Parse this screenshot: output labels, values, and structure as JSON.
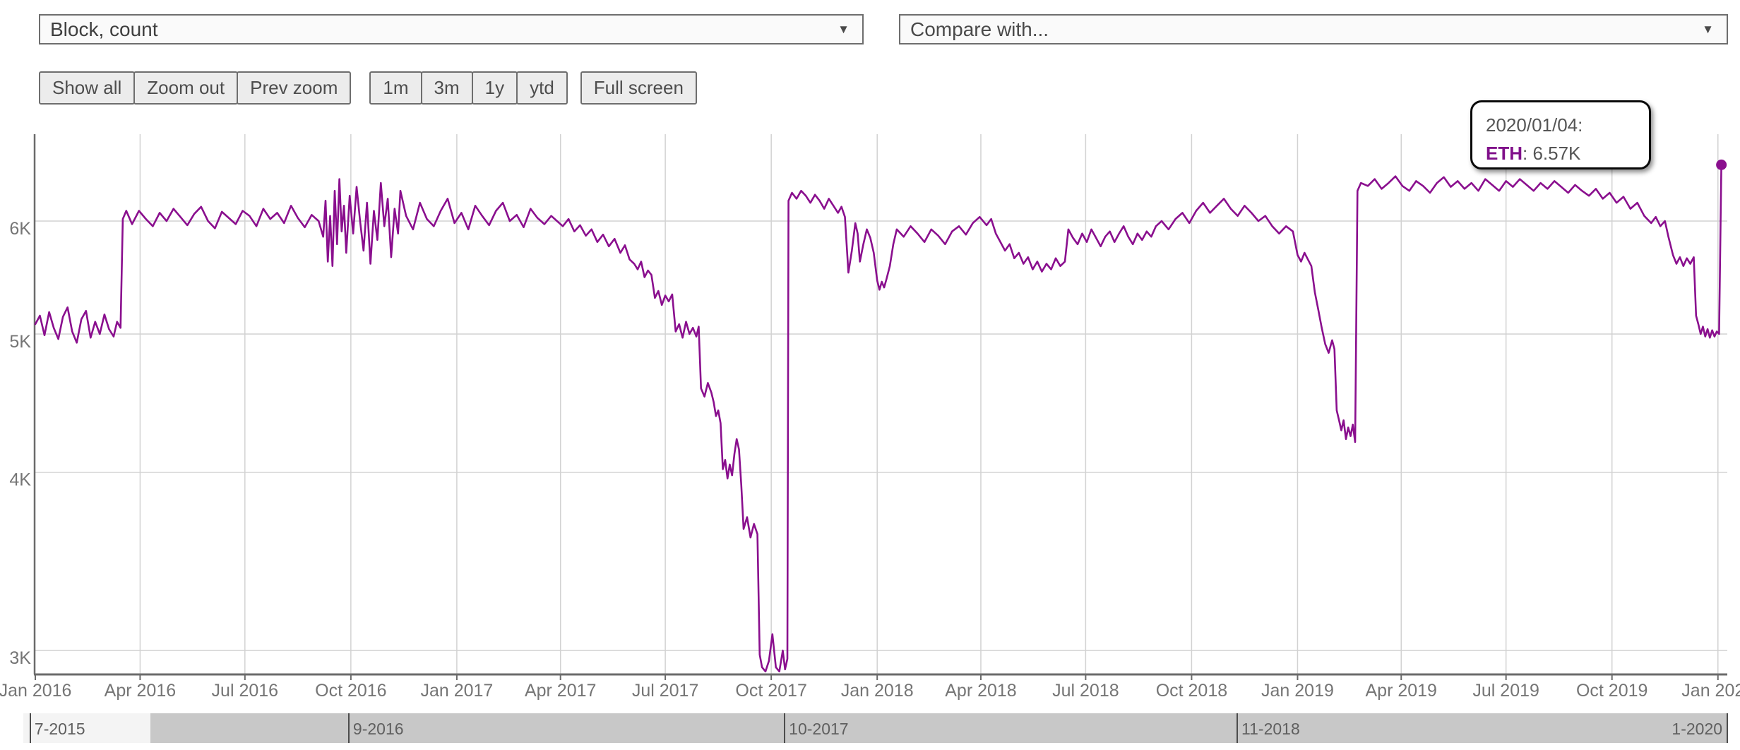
{
  "controls": {
    "metric_dropdown": {
      "value": "Block, count",
      "arrow": "▼"
    },
    "compare_dropdown": {
      "value": "Compare with...",
      "arrow": "▼"
    },
    "buttons": {
      "history_group": [
        "Show all",
        "Zoom out",
        "Prev zoom"
      ],
      "range_group": [
        "1m",
        "3m",
        "1y",
        "ytd"
      ],
      "fullscreen_label": "Full screen"
    }
  },
  "tooltip": {
    "date": "2020/01/04:",
    "series": "ETH",
    "separator": ": ",
    "value": "6.57K"
  },
  "navigator": {
    "selected_start": 0.0746,
    "selected_end": 1.0,
    "ticks": [
      {
        "label": "7-2015",
        "pos": 0.0037,
        "side": "left"
      },
      {
        "label": "9-2016",
        "pos": 0.1906,
        "side": "left"
      },
      {
        "label": "10-2017",
        "pos": 0.4464,
        "side": "left"
      },
      {
        "label": "11-2018",
        "pos": 0.712,
        "side": "left"
      },
      {
        "label": "1-2020",
        "pos": 0.9996,
        "side": "right"
      }
    ]
  },
  "chart_data": {
    "type": "line",
    "title": "",
    "series_name": "ETH",
    "metric": "Block, count",
    "line_color": "#8a0f8e",
    "grid_color": "#d2d2d2",
    "axis_color": "#6b6b6b",
    "label_color": "#757575",
    "grid": true,
    "legend_position": "none",
    "y_axis": {
      "scale": "log",
      "unit": "K blocks per day",
      "ticks": [
        {
          "label": "6K",
          "value": 6
        },
        {
          "label": "5K",
          "value": 5
        },
        {
          "label": "4K",
          "value": 4
        },
        {
          "label": "3K",
          "value": 3
        }
      ],
      "visible_range_k": [
        2.88,
        6.95
      ]
    },
    "x_axis": {
      "unit": "days since 2016-01-01",
      "range_days": [
        0,
        1470
      ],
      "ticks": [
        {
          "label": "Jan 2016",
          "day": 0
        },
        {
          "label": "Apr 2016",
          "day": 91
        },
        {
          "label": "Jul 2016",
          "day": 182
        },
        {
          "label": "Oct 2016",
          "day": 274
        },
        {
          "label": "Jan 2017",
          "day": 366
        },
        {
          "label": "Apr 2017",
          "day": 456
        },
        {
          "label": "Jul 2017",
          "day": 547
        },
        {
          "label": "Oct 2017",
          "day": 639
        },
        {
          "label": "Jan 2018",
          "day": 731
        },
        {
          "label": "Apr 2018",
          "day": 821
        },
        {
          "label": "Jul 2018",
          "day": 912
        },
        {
          "label": "Oct 2018",
          "day": 1004
        },
        {
          "label": "Jan 2019",
          "day": 1096
        },
        {
          "label": "Apr 2019",
          "day": 1186
        },
        {
          "label": "Jul 2019",
          "day": 1277
        },
        {
          "label": "Oct 2019",
          "day": 1369
        },
        {
          "label": "Jan 2020",
          "day": 1461
        }
      ]
    },
    "last_point": {
      "date": "2020/01/04",
      "day": 1464,
      "value_k": 6.57
    },
    "points": [
      [
        0,
        5.08
      ],
      [
        4,
        5.15
      ],
      [
        8,
        4.99
      ],
      [
        12,
        5.18
      ],
      [
        16,
        5.05
      ],
      [
        20,
        4.96
      ],
      [
        24,
        5.14
      ],
      [
        28,
        5.22
      ],
      [
        32,
        5.02
      ],
      [
        36,
        4.93
      ],
      [
        40,
        5.12
      ],
      [
        44,
        5.19
      ],
      [
        48,
        4.97
      ],
      [
        52,
        5.1
      ],
      [
        56,
        5.0
      ],
      [
        60,
        5.16
      ],
      [
        64,
        5.04
      ],
      [
        68,
        4.98
      ],
      [
        71,
        5.1
      ],
      [
        74,
        5.05
      ],
      [
        76,
        6.02
      ],
      [
        79,
        6.1
      ],
      [
        84,
        5.97
      ],
      [
        90,
        6.1
      ],
      [
        96,
        6.02
      ],
      [
        102,
        5.95
      ],
      [
        108,
        6.08
      ],
      [
        114,
        6.0
      ],
      [
        120,
        6.12
      ],
      [
        126,
        6.04
      ],
      [
        132,
        5.96
      ],
      [
        138,
        6.07
      ],
      [
        144,
        6.14
      ],
      [
        150,
        6.0
      ],
      [
        156,
        5.93
      ],
      [
        162,
        6.09
      ],
      [
        168,
        6.03
      ],
      [
        174,
        5.97
      ],
      [
        180,
        6.1
      ],
      [
        186,
        6.05
      ],
      [
        192,
        5.95
      ],
      [
        198,
        6.12
      ],
      [
        204,
        6.02
      ],
      [
        210,
        6.08
      ],
      [
        216,
        5.98
      ],
      [
        222,
        6.15
      ],
      [
        228,
        6.03
      ],
      [
        234,
        5.94
      ],
      [
        240,
        6.06
      ],
      [
        246,
        6.0
      ],
      [
        250,
        5.85
      ],
      [
        252,
        6.2
      ],
      [
        254,
        5.62
      ],
      [
        256,
        6.05
      ],
      [
        258,
        5.58
      ],
      [
        260,
        6.3
      ],
      [
        262,
        5.78
      ],
      [
        264,
        6.42
      ],
      [
        266,
        5.9
      ],
      [
        268,
        6.15
      ],
      [
        270,
        5.7
      ],
      [
        273,
        6.25
      ],
      [
        276,
        5.88
      ],
      [
        279,
        6.34
      ],
      [
        282,
        6.0
      ],
      [
        285,
        5.72
      ],
      [
        288,
        6.18
      ],
      [
        291,
        5.6
      ],
      [
        294,
        6.1
      ],
      [
        297,
        5.82
      ],
      [
        300,
        6.38
      ],
      [
        303,
        5.95
      ],
      [
        306,
        6.22
      ],
      [
        309,
        5.66
      ],
      [
        312,
        6.12
      ],
      [
        315,
        5.88
      ],
      [
        317,
        6.3
      ],
      [
        322,
        6.05
      ],
      [
        328,
        5.92
      ],
      [
        334,
        6.18
      ],
      [
        340,
        6.02
      ],
      [
        346,
        5.95
      ],
      [
        352,
        6.1
      ],
      [
        358,
        6.22
      ],
      [
        364,
        5.98
      ],
      [
        370,
        6.08
      ],
      [
        376,
        5.92
      ],
      [
        382,
        6.15
      ],
      [
        388,
        6.05
      ],
      [
        394,
        5.96
      ],
      [
        400,
        6.1
      ],
      [
        406,
        6.18
      ],
      [
        412,
        6.0
      ],
      [
        418,
        6.06
      ],
      [
        424,
        5.94
      ],
      [
        430,
        6.12
      ],
      [
        436,
        6.03
      ],
      [
        442,
        5.97
      ],
      [
        448,
        6.05
      ],
      [
        453,
        6.0
      ],
      [
        458,
        5.95
      ],
      [
        463,
        6.02
      ],
      [
        468,
        5.9
      ],
      [
        473,
        5.96
      ],
      [
        478,
        5.86
      ],
      [
        483,
        5.92
      ],
      [
        488,
        5.8
      ],
      [
        493,
        5.87
      ],
      [
        498,
        5.76
      ],
      [
        503,
        5.83
      ],
      [
        508,
        5.7
      ],
      [
        512,
        5.77
      ],
      [
        516,
        5.64
      ],
      [
        520,
        5.6
      ],
      [
        523,
        5.55
      ],
      [
        526,
        5.62
      ],
      [
        529,
        5.48
      ],
      [
        532,
        5.54
      ],
      [
        535,
        5.5
      ],
      [
        538,
        5.3
      ],
      [
        541,
        5.36
      ],
      [
        544,
        5.24
      ],
      [
        547,
        5.32
      ],
      [
        550,
        5.27
      ],
      [
        553,
        5.33
      ],
      [
        556,
        5.02
      ],
      [
        559,
        5.08
      ],
      [
        562,
        4.97
      ],
      [
        565,
        5.1
      ],
      [
        568,
        5.0
      ],
      [
        571,
        5.05
      ],
      [
        574,
        4.98
      ],
      [
        576,
        5.06
      ],
      [
        578,
        4.58
      ],
      [
        581,
        4.52
      ],
      [
        584,
        4.62
      ],
      [
        587,
        4.55
      ],
      [
        589,
        4.48
      ],
      [
        591,
        4.38
      ],
      [
        593,
        4.42
      ],
      [
        595,
        4.33
      ],
      [
        597,
        4.02
      ],
      [
        599,
        4.08
      ],
      [
        601,
        3.96
      ],
      [
        603,
        4.05
      ],
      [
        605,
        3.98
      ],
      [
        607,
        4.12
      ],
      [
        609,
        4.22
      ],
      [
        611,
        4.15
      ],
      [
        613,
        3.92
      ],
      [
        615,
        3.65
      ],
      [
        618,
        3.72
      ],
      [
        621,
        3.6
      ],
      [
        624,
        3.68
      ],
      [
        627,
        3.62
      ],
      [
        629,
        2.98
      ],
      [
        631,
        2.92
      ],
      [
        634,
        2.9
      ],
      [
        637,
        2.95
      ],
      [
        640,
        3.08
      ],
      [
        643,
        2.92
      ],
      [
        646,
        2.9
      ],
      [
        649,
        3.0
      ],
      [
        651,
        2.91
      ],
      [
        653,
        2.96
      ],
      [
        654,
        6.2
      ],
      [
        657,
        6.28
      ],
      [
        661,
        6.22
      ],
      [
        665,
        6.3
      ],
      [
        669,
        6.25
      ],
      [
        673,
        6.18
      ],
      [
        677,
        6.26
      ],
      [
        681,
        6.2
      ],
      [
        685,
        6.12
      ],
      [
        689,
        6.22
      ],
      [
        693,
        6.15
      ],
      [
        697,
        6.08
      ],
      [
        700,
        6.14
      ],
      [
        703,
        6.04
      ],
      [
        706,
        5.52
      ],
      [
        709,
        5.72
      ],
      [
        712,
        5.98
      ],
      [
        714,
        5.88
      ],
      [
        716,
        5.62
      ],
      [
        719,
        5.78
      ],
      [
        722,
        5.92
      ],
      [
        725,
        5.84
      ],
      [
        728,
        5.7
      ],
      [
        731,
        5.45
      ],
      [
        733,
        5.37
      ],
      [
        735,
        5.44
      ],
      [
        737,
        5.39
      ],
      [
        739,
        5.46
      ],
      [
        742,
        5.58
      ],
      [
        745,
        5.78
      ],
      [
        748,
        5.92
      ],
      [
        754,
        5.85
      ],
      [
        760,
        5.95
      ],
      [
        766,
        5.88
      ],
      [
        772,
        5.8
      ],
      [
        778,
        5.92
      ],
      [
        784,
        5.86
      ],
      [
        790,
        5.78
      ],
      [
        796,
        5.9
      ],
      [
        802,
        5.95
      ],
      [
        808,
        5.87
      ],
      [
        814,
        5.98
      ],
      [
        820,
        6.04
      ],
      [
        826,
        5.96
      ],
      [
        830,
        6.02
      ],
      [
        834,
        5.88
      ],
      [
        838,
        5.8
      ],
      [
        842,
        5.72
      ],
      [
        846,
        5.78
      ],
      [
        850,
        5.65
      ],
      [
        854,
        5.7
      ],
      [
        858,
        5.6
      ],
      [
        862,
        5.66
      ],
      [
        866,
        5.55
      ],
      [
        870,
        5.62
      ],
      [
        874,
        5.53
      ],
      [
        878,
        5.6
      ],
      [
        882,
        5.55
      ],
      [
        886,
        5.65
      ],
      [
        890,
        5.58
      ],
      [
        894,
        5.62
      ],
      [
        897,
        5.92
      ],
      [
        901,
        5.84
      ],
      [
        905,
        5.78
      ],
      [
        909,
        5.88
      ],
      [
        913,
        5.8
      ],
      [
        917,
        5.92
      ],
      [
        921,
        5.84
      ],
      [
        925,
        5.76
      ],
      [
        929,
        5.85
      ],
      [
        933,
        5.9
      ],
      [
        937,
        5.8
      ],
      [
        941,
        5.88
      ],
      [
        945,
        5.95
      ],
      [
        949,
        5.85
      ],
      [
        953,
        5.78
      ],
      [
        957,
        5.88
      ],
      [
        961,
        5.82
      ],
      [
        965,
        5.9
      ],
      [
        969,
        5.85
      ],
      [
        973,
        5.95
      ],
      [
        978,
        6.0
      ],
      [
        984,
        5.92
      ],
      [
        990,
        6.02
      ],
      [
        996,
        6.08
      ],
      [
        1002,
        5.98
      ],
      [
        1008,
        6.1
      ],
      [
        1014,
        6.18
      ],
      [
        1020,
        6.08
      ],
      [
        1026,
        6.15
      ],
      [
        1032,
        6.22
      ],
      [
        1038,
        6.12
      ],
      [
        1044,
        6.05
      ],
      [
        1050,
        6.15
      ],
      [
        1056,
        6.08
      ],
      [
        1062,
        6.0
      ],
      [
        1068,
        6.05
      ],
      [
        1074,
        5.95
      ],
      [
        1080,
        5.88
      ],
      [
        1086,
        5.95
      ],
      [
        1092,
        5.9
      ],
      [
        1096,
        5.68
      ],
      [
        1099,
        5.62
      ],
      [
        1102,
        5.7
      ],
      [
        1105,
        5.64
      ],
      [
        1108,
        5.58
      ],
      [
        1111,
        5.35
      ],
      [
        1114,
        5.2
      ],
      [
        1117,
        5.05
      ],
      [
        1120,
        4.92
      ],
      [
        1123,
        4.85
      ],
      [
        1126,
        4.95
      ],
      [
        1128,
        4.88
      ],
      [
        1130,
        4.42
      ],
      [
        1132,
        4.35
      ],
      [
        1134,
        4.28
      ],
      [
        1136,
        4.35
      ],
      [
        1138,
        4.22
      ],
      [
        1140,
        4.3
      ],
      [
        1142,
        4.24
      ],
      [
        1144,
        4.32
      ],
      [
        1146,
        4.2
      ],
      [
        1148,
        6.3
      ],
      [
        1151,
        6.38
      ],
      [
        1157,
        6.35
      ],
      [
        1163,
        6.42
      ],
      [
        1169,
        6.32
      ],
      [
        1175,
        6.38
      ],
      [
        1181,
        6.45
      ],
      [
        1187,
        6.35
      ],
      [
        1193,
        6.3
      ],
      [
        1199,
        6.4
      ],
      [
        1205,
        6.35
      ],
      [
        1211,
        6.28
      ],
      [
        1217,
        6.38
      ],
      [
        1223,
        6.44
      ],
      [
        1229,
        6.34
      ],
      [
        1235,
        6.4
      ],
      [
        1241,
        6.32
      ],
      [
        1247,
        6.38
      ],
      [
        1253,
        6.3
      ],
      [
        1259,
        6.42
      ],
      [
        1265,
        6.36
      ],
      [
        1271,
        6.3
      ],
      [
        1277,
        6.4
      ],
      [
        1283,
        6.34
      ],
      [
        1289,
        6.42
      ],
      [
        1295,
        6.36
      ],
      [
        1301,
        6.3
      ],
      [
        1307,
        6.38
      ],
      [
        1313,
        6.32
      ],
      [
        1319,
        6.4
      ],
      [
        1325,
        6.34
      ],
      [
        1331,
        6.28
      ],
      [
        1337,
        6.36
      ],
      [
        1343,
        6.3
      ],
      [
        1349,
        6.25
      ],
      [
        1355,
        6.32
      ],
      [
        1361,
        6.22
      ],
      [
        1367,
        6.28
      ],
      [
        1373,
        6.18
      ],
      [
        1379,
        6.24
      ],
      [
        1385,
        6.12
      ],
      [
        1391,
        6.18
      ],
      [
        1397,
        6.05
      ],
      [
        1403,
        5.98
      ],
      [
        1407,
        6.04
      ],
      [
        1411,
        5.95
      ],
      [
        1415,
        6.0
      ],
      [
        1418,
        5.85
      ],
      [
        1422,
        5.68
      ],
      [
        1425,
        5.6
      ],
      [
        1428,
        5.66
      ],
      [
        1431,
        5.58
      ],
      [
        1434,
        5.65
      ],
      [
        1437,
        5.6
      ],
      [
        1440,
        5.66
      ],
      [
        1442,
        5.15
      ],
      [
        1444,
        5.08
      ],
      [
        1446,
        5.0
      ],
      [
        1448,
        5.06
      ],
      [
        1450,
        4.98
      ],
      [
        1452,
        5.04
      ],
      [
        1454,
        4.97
      ],
      [
        1456,
        5.03
      ],
      [
        1458,
        4.98
      ],
      [
        1460,
        5.02
      ],
      [
        1462,
        5.0
      ],
      [
        1464,
        6.57
      ]
    ]
  }
}
